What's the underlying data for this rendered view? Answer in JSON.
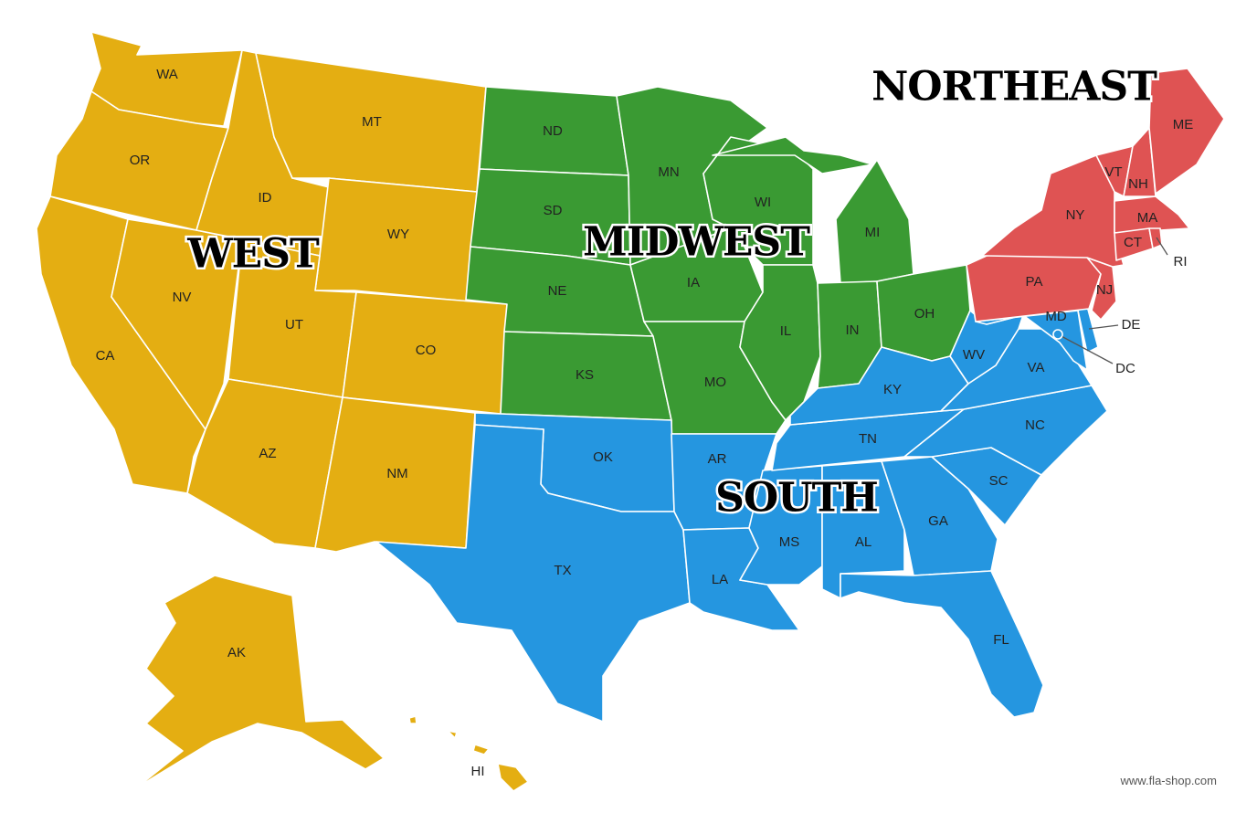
{
  "regions": {
    "west": {
      "label": "WEST",
      "color": "#E4AE12"
    },
    "midwest": {
      "label": "MIDWEST",
      "color": "#3A9A33"
    },
    "south": {
      "label": "SOUTH",
      "color": "#2596E0"
    },
    "northeast": {
      "label": "NORTHEAST",
      "color": "#DF5353"
    }
  },
  "states": [
    {
      "abbr": "WA",
      "region": "west"
    },
    {
      "abbr": "OR",
      "region": "west"
    },
    {
      "abbr": "CA",
      "region": "west"
    },
    {
      "abbr": "NV",
      "region": "west"
    },
    {
      "abbr": "ID",
      "region": "west"
    },
    {
      "abbr": "MT",
      "region": "west"
    },
    {
      "abbr": "WY",
      "region": "west"
    },
    {
      "abbr": "UT",
      "region": "west"
    },
    {
      "abbr": "CO",
      "region": "west"
    },
    {
      "abbr": "AZ",
      "region": "west"
    },
    {
      "abbr": "NM",
      "region": "west"
    },
    {
      "abbr": "AK",
      "region": "west"
    },
    {
      "abbr": "HI",
      "region": "west"
    },
    {
      "abbr": "ND",
      "region": "midwest"
    },
    {
      "abbr": "SD",
      "region": "midwest"
    },
    {
      "abbr": "NE",
      "region": "midwest"
    },
    {
      "abbr": "KS",
      "region": "midwest"
    },
    {
      "abbr": "MN",
      "region": "midwest"
    },
    {
      "abbr": "IA",
      "region": "midwest"
    },
    {
      "abbr": "MO",
      "region": "midwest"
    },
    {
      "abbr": "WI",
      "region": "midwest"
    },
    {
      "abbr": "IL",
      "region": "midwest"
    },
    {
      "abbr": "MI",
      "region": "midwest"
    },
    {
      "abbr": "IN",
      "region": "midwest"
    },
    {
      "abbr": "OH",
      "region": "midwest"
    },
    {
      "abbr": "OK",
      "region": "south"
    },
    {
      "abbr": "TX",
      "region": "south"
    },
    {
      "abbr": "AR",
      "region": "south"
    },
    {
      "abbr": "LA",
      "region": "south"
    },
    {
      "abbr": "MS",
      "region": "south"
    },
    {
      "abbr": "AL",
      "region": "south"
    },
    {
      "abbr": "TN",
      "region": "south"
    },
    {
      "abbr": "KY",
      "region": "south"
    },
    {
      "abbr": "GA",
      "region": "south"
    },
    {
      "abbr": "FL",
      "region": "south"
    },
    {
      "abbr": "SC",
      "region": "south"
    },
    {
      "abbr": "NC",
      "region": "south"
    },
    {
      "abbr": "VA",
      "region": "south"
    },
    {
      "abbr": "WV",
      "region": "south"
    },
    {
      "abbr": "MD",
      "region": "south"
    },
    {
      "abbr": "DE",
      "region": "south"
    },
    {
      "abbr": "DC",
      "region": "south"
    },
    {
      "abbr": "PA",
      "region": "northeast"
    },
    {
      "abbr": "NJ",
      "region": "northeast"
    },
    {
      "abbr": "NY",
      "region": "northeast"
    },
    {
      "abbr": "VT",
      "region": "northeast"
    },
    {
      "abbr": "NH",
      "region": "northeast"
    },
    {
      "abbr": "ME",
      "region": "northeast"
    },
    {
      "abbr": "MA",
      "region": "northeast"
    },
    {
      "abbr": "CT",
      "region": "northeast"
    },
    {
      "abbr": "RI",
      "region": "northeast"
    }
  ],
  "credit": "www.fla-shop.com"
}
